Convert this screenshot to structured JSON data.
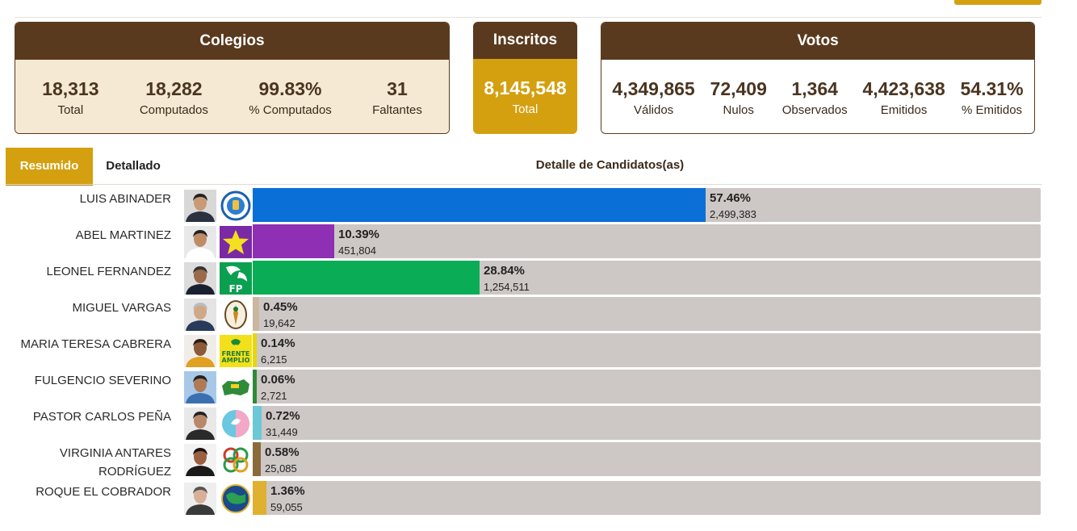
{
  "colegios": {
    "title": "Colegios",
    "stats": [
      {
        "value": "18,313",
        "label": "Total"
      },
      {
        "value": "18,282",
        "label": "Computados"
      },
      {
        "value": "99.83%",
        "label": "% Computados"
      },
      {
        "value": "31",
        "label": "Faltantes"
      }
    ]
  },
  "inscritos": {
    "title": "Inscritos",
    "value": "8,145,548",
    "label": "Total"
  },
  "votos": {
    "title": "Votos",
    "stats": [
      {
        "value": "4,349,865",
        "label": "Válidos"
      },
      {
        "value": "72,409",
        "label": "Nulos"
      },
      {
        "value": "1,364",
        "label": "Observados"
      },
      {
        "value": "4,423,638",
        "label": "Emitidos"
      },
      {
        "value": "54.31%",
        "label": "% Emitidos"
      }
    ]
  },
  "tabs": {
    "resumen": "Resumido",
    "detalle": "Detallado"
  },
  "detail_title": "Detalle de Candidatos(as)",
  "chart_data": {
    "type": "bar",
    "categories": [
      "LUIS ABINADER",
      "ABEL MARTINEZ",
      "LEONEL FERNANDEZ",
      "MIGUEL VARGAS",
      "MARIA TERESA CABRERA",
      "FULGENCIO SEVERINO",
      "PASTOR CARLOS PEÑA",
      "VIRGINIA ANTARES RODRÍGUEZ",
      "ROQUE EL COBRADOR"
    ],
    "values": [
      57.46,
      10.39,
      28.84,
      0.45,
      0.14,
      0.06,
      0.72,
      0.58,
      1.36
    ],
    "votes": [
      "2,499,383",
      "451,804",
      "1,254,511",
      "19,642",
      "6,215",
      "2,721",
      "31,449",
      "25,085",
      "59,055"
    ],
    "pct_labels": [
      "57.46%",
      "10.39%",
      "28.84%",
      "0.45%",
      "0.14%",
      "0.06%",
      "0.72%",
      "0.58%",
      "1.36%"
    ],
    "colors": [
      "#0a6fd6",
      "#8e2fb4",
      "#0aad55",
      "#c9b7a0",
      "#e8d60a",
      "#2f8a3a",
      "#6cc7d6",
      "#8b6a3a",
      "#e0b030"
    ],
    "xlim": [
      0,
      100
    ],
    "legend": "none"
  },
  "candidates": [
    {
      "name_lines": [
        "LUIS ABINADER"
      ],
      "party_icon": "prm-logo"
    },
    {
      "name_lines": [
        "ABEL MARTINEZ"
      ],
      "party_icon": "star-logo"
    },
    {
      "name_lines": [
        "LEONEL FERNANDEZ"
      ],
      "party_icon": "fp-logo"
    },
    {
      "name_lines": [
        "MIGUEL VARGAS"
      ],
      "party_icon": "prd-logo"
    },
    {
      "name_lines": [
        "MARIA TERESA CABRERA"
      ],
      "party_icon": "frente-amplio-logo"
    },
    {
      "name_lines": [
        "FULGENCIO SEVERINO"
      ],
      "party_icon": "map-logo"
    },
    {
      "name_lines": [
        "PASTOR CARLOS PEÑA"
      ],
      "party_icon": "dove-logo"
    },
    {
      "name_lines": [
        "VIRGINIA ANTARES",
        "RODRÍGUEZ"
      ],
      "party_icon": "rings-logo"
    },
    {
      "name_lines": [
        "ROQUE EL COBRADOR"
      ],
      "party_icon": "globe-logo"
    }
  ],
  "frente_amplio_text": [
    "FRENTE",
    "AMPLIO"
  ],
  "fp_text": "FP"
}
